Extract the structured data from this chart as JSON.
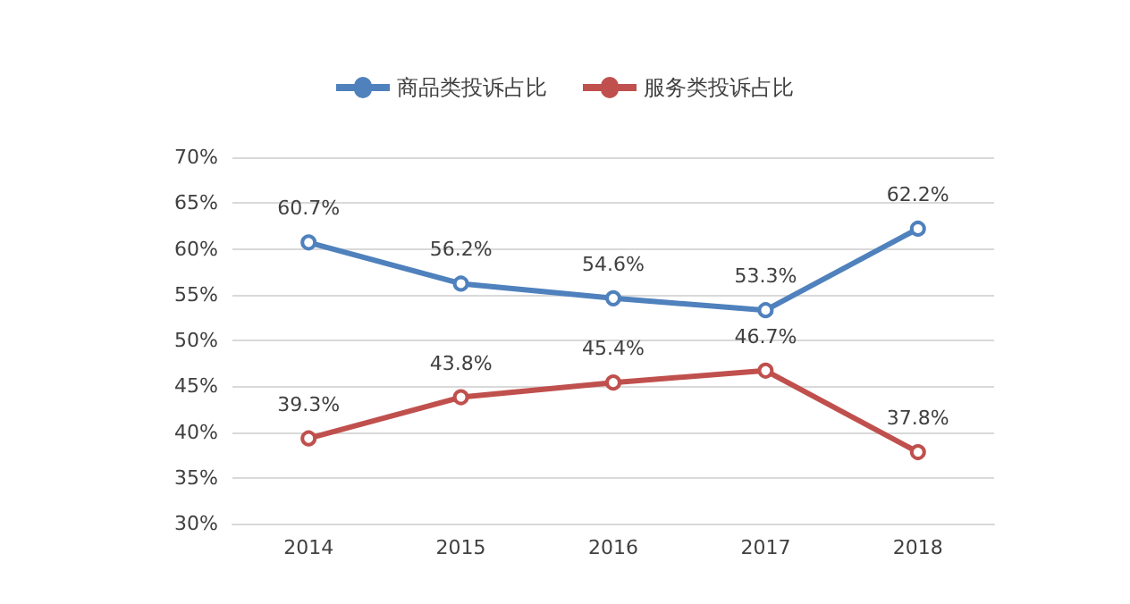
{
  "chart_data": {
    "type": "line",
    "categories": [
      "2014",
      "2015",
      "2016",
      "2017",
      "2018"
    ],
    "series": [
      {
        "name": "商品类投诉占比",
        "color": "#4f81bd",
        "values": [
          60.7,
          56.2,
          54.6,
          53.3,
          62.2
        ],
        "value_labels": [
          "60.7%",
          "56.2%",
          "54.6%",
          "53.3%",
          "62.2%"
        ]
      },
      {
        "name": "服务类投诉占比",
        "color": "#c0504d",
        "values": [
          39.3,
          43.8,
          45.4,
          46.7,
          37.8
        ],
        "value_labels": [
          "39.3%",
          "43.8%",
          "45.4%",
          "46.7%",
          "37.8%"
        ]
      }
    ],
    "ylim": [
      30,
      70
    ],
    "yticks": [
      {
        "value": 30,
        "label": "30%"
      },
      {
        "value": 35,
        "label": "35%"
      },
      {
        "value": 40,
        "label": "40%"
      },
      {
        "value": 45,
        "label": "45%"
      },
      {
        "value": 50,
        "label": "50%"
      },
      {
        "value": 55,
        "label": "55%"
      },
      {
        "value": 60,
        "label": "60%"
      },
      {
        "value": 65,
        "label": "65%"
      },
      {
        "value": 70,
        "label": "70%"
      }
    ],
    "grid": "y",
    "legend": "top",
    "marker": "circle",
    "line_style": "solid"
  }
}
